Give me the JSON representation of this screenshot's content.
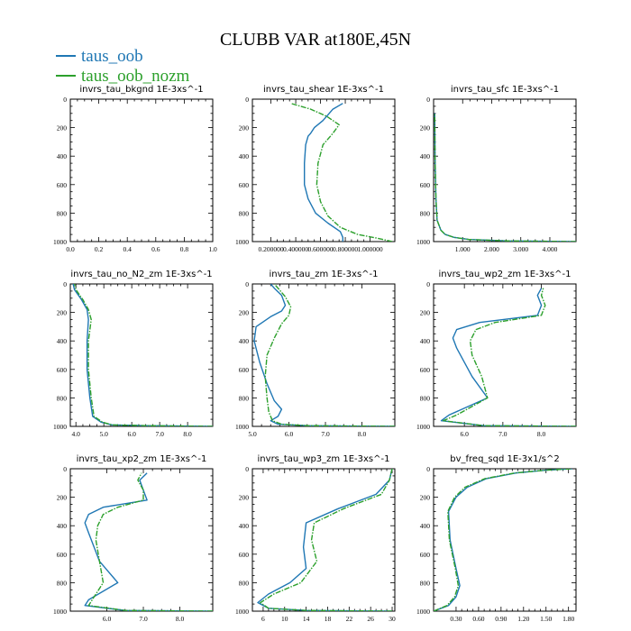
{
  "title": "CLUBB VAR at180E,45N",
  "legend": [
    {
      "label": "taus_oob",
      "color": "#1f77b4"
    },
    {
      "label": "taus_oob_nozm",
      "color": "#2ca02c"
    }
  ],
  "chart_data": [
    {
      "type": "line",
      "title": "invrs_tau_bkgnd   1E-3xs^-1",
      "xlim": [
        0,
        1.0
      ],
      "ylim": [
        1000,
        0
      ],
      "xticks": [
        0.0,
        0.2,
        0.4,
        0.6,
        0.8,
        1.0
      ],
      "xtick_labels": [
        "0.0",
        "0.2",
        "0.4",
        "0.6",
        "0.8",
        "1.0"
      ],
      "yticks": [
        0,
        200,
        400,
        600,
        800,
        1000
      ],
      "series": []
    },
    {
      "type": "line",
      "title": "invrs_tau_shear   1E-3xs^-1",
      "xlim": [
        0.05,
        1.2
      ],
      "ylim": [
        1000,
        0
      ],
      "xticks": [
        0.2,
        0.4,
        0.6,
        0.8,
        1.0
      ],
      "xtick_labels": [
        "0.200000",
        "0.400000",
        "0.600000",
        "0.800000",
        "1.000000"
      ],
      "yticks": [
        0,
        200,
        400,
        600,
        800,
        1000
      ],
      "series": [
        {
          "name": "taus_oob",
          "x": [
            0.78,
            0.78,
            0.76,
            0.66,
            0.56,
            0.5,
            0.47,
            0.47,
            0.48,
            0.5,
            0.52,
            0.55,
            0.62,
            0.7,
            0.78
          ],
          "y": [
            1000,
            970,
            930,
            870,
            800,
            700,
            600,
            450,
            320,
            260,
            240,
            200,
            150,
            70,
            30
          ]
        },
        {
          "name": "taus_oob_nozm",
          "x": [
            1.18,
            1.05,
            0.9,
            0.76,
            0.66,
            0.6,
            0.57,
            0.58,
            0.62,
            0.7,
            0.75,
            0.65,
            0.52,
            0.36
          ],
          "y": [
            1000,
            975,
            950,
            900,
            820,
            720,
            600,
            450,
            320,
            240,
            180,
            120,
            70,
            30
          ]
        }
      ]
    },
    {
      "type": "line",
      "title": "invrs_tau_sfc   1E-3xs^-1",
      "xlim": [
        0.0,
        4.9
      ],
      "ylim": [
        1000,
        0
      ],
      "xticks": [
        1.0,
        2.0,
        3.0,
        4.0
      ],
      "xtick_labels": [
        "1.000",
        "2.000",
        "3.000",
        "4.000"
      ],
      "yticks": [
        0,
        200,
        400,
        600,
        800,
        1000
      ],
      "series": [
        {
          "name": "taus_oob",
          "x": [
            4.9,
            2.5,
            1.2,
            0.7,
            0.4,
            0.25,
            0.12,
            0.08,
            0.05,
            0.04
          ],
          "y": [
            1000,
            995,
            985,
            970,
            950,
            920,
            850,
            700,
            400,
            100
          ]
        },
        {
          "name": "taus_oob_nozm",
          "x": [
            4.9,
            2.5,
            1.2,
            0.7,
            0.4,
            0.25,
            0.12,
            0.08,
            0.05,
            0.04
          ],
          "y": [
            1000,
            995,
            985,
            970,
            950,
            920,
            850,
            700,
            400,
            100
          ]
        }
      ]
    },
    {
      "type": "line",
      "title": "invrs_tau_no_N2_zm   1E-3xs^-1",
      "xlim": [
        3.8,
        8.9
      ],
      "ylim": [
        1000,
        0
      ],
      "xticks": [
        4.0,
        5.0,
        6.0,
        7.0,
        8.0
      ],
      "xtick_labels": [
        "4.0",
        "5.0",
        "6.0",
        "7.0",
        "8.0"
      ],
      "yticks": [
        0,
        200,
        400,
        600,
        800,
        1000
      ],
      "series": [
        {
          "name": "taus_oob",
          "x": [
            8.9,
            6.5,
            5.3,
            4.9,
            4.6,
            4.5,
            4.4,
            4.4,
            4.45,
            4.4,
            4.2,
            3.95,
            3.9
          ],
          "y": [
            1000,
            995,
            990,
            970,
            930,
            800,
            600,
            400,
            250,
            180,
            110,
            40,
            0
          ]
        },
        {
          "name": "taus_oob_nozm",
          "x": [
            8.9,
            6.5,
            5.3,
            4.95,
            4.65,
            4.55,
            4.45,
            4.45,
            4.55,
            4.45,
            4.25,
            4.0,
            3.95
          ],
          "y": [
            1000,
            995,
            990,
            970,
            930,
            800,
            600,
            400,
            250,
            180,
            110,
            40,
            0
          ]
        }
      ]
    },
    {
      "type": "line",
      "title": "invrs_tau_zm   1E-3xs^-1",
      "xlim": [
        5.0,
        8.9
      ],
      "ylim": [
        1000,
        0
      ],
      "xticks": [
        5.0,
        6.0,
        7.0,
        8.0
      ],
      "xtick_labels": [
        "5.0",
        "6.0",
        "7.0",
        "8.0"
      ],
      "yticks": [
        0,
        200,
        400,
        600,
        800,
        1000
      ],
      "series": [
        {
          "name": "taus_oob",
          "x": [
            8.9,
            6.5,
            5.7,
            5.5,
            5.7,
            5.8,
            5.6,
            5.4,
            5.2,
            5.05,
            5.1,
            5.5,
            5.8,
            5.9,
            5.8,
            5.6,
            5.5
          ],
          "y": [
            1000,
            995,
            985,
            960,
            930,
            880,
            820,
            700,
            550,
            400,
            300,
            230,
            190,
            150,
            80,
            30,
            0
          ]
        },
        {
          "name": "taus_oob_nozm",
          "x": [
            8.9,
            6.5,
            5.8,
            5.55,
            5.45,
            5.4,
            5.35,
            5.4,
            5.6,
            5.8,
            6.0,
            6.05,
            5.9,
            5.7,
            5.6
          ],
          "y": [
            1000,
            995,
            985,
            960,
            900,
            800,
            650,
            500,
            380,
            280,
            220,
            160,
            90,
            30,
            0
          ]
        }
      ]
    },
    {
      "type": "line",
      "title": "invrs_tau_wp2_zm   1E-3xs^-1",
      "xlim": [
        5.2,
        8.9
      ],
      "ylim": [
        1000,
        0
      ],
      "xticks": [
        6.0,
        7.0,
        8.0
      ],
      "xtick_labels": [
        "6.0",
        "7.0",
        "8.0"
      ],
      "yticks": [
        0,
        200,
        400,
        600,
        800,
        1000
      ],
      "series": [
        {
          "name": "taus_oob",
          "x": [
            8.9,
            6.5,
            5.4,
            5.6,
            6.6,
            6.2,
            5.8,
            5.7,
            5.8,
            6.4,
            7.9,
            8.0,
            7.9,
            8.0
          ],
          "y": [
            1000,
            995,
            960,
            920,
            800,
            650,
            450,
            380,
            320,
            270,
            220,
            150,
            80,
            30
          ]
        },
        {
          "name": "taus_oob_nozm",
          "x": [
            8.9,
            6.5,
            5.45,
            5.8,
            6.6,
            6.45,
            6.2,
            6.15,
            6.3,
            6.8,
            8.0,
            8.1,
            8.0,
            8.05
          ],
          "y": [
            1000,
            995,
            960,
            920,
            800,
            650,
            500,
            400,
            320,
            270,
            220,
            150,
            80,
            30
          ]
        }
      ]
    },
    {
      "type": "line",
      "title": "invrs_tau_xp2_zm   1E-3xs^-1",
      "xlim": [
        5.0,
        8.9
      ],
      "ylim": [
        1000,
        0
      ],
      "xticks": [
        6.0,
        7.0,
        8.0
      ],
      "xtick_labels": [
        "6.0",
        "7.0",
        "8.0"
      ],
      "yticks": [
        0,
        200,
        400,
        600,
        800,
        1000
      ],
      "series": [
        {
          "name": "taus_oob",
          "x": [
            8.9,
            6.5,
            5.4,
            5.5,
            6.3,
            5.8,
            5.5,
            5.4,
            5.5,
            5.9,
            7.1,
            7.0,
            6.9,
            7.1
          ],
          "y": [
            1000,
            995,
            960,
            920,
            800,
            650,
            450,
            380,
            320,
            270,
            220,
            150,
            80,
            30
          ]
        },
        {
          "name": "taus_oob_nozm",
          "x": [
            8.9,
            6.5,
            5.5,
            5.6,
            5.9,
            5.8,
            5.7,
            5.75,
            5.9,
            6.3,
            7.0,
            7.0,
            6.85,
            6.95
          ],
          "y": [
            1000,
            995,
            960,
            920,
            800,
            650,
            500,
            400,
            320,
            270,
            220,
            150,
            80,
            30
          ]
        }
      ]
    },
    {
      "type": "line",
      "title": "invrs_tau_wp3_zm   1E-3xs^-1",
      "xlim": [
        4.0,
        30.5
      ],
      "ylim": [
        1000,
        0
      ],
      "xticks": [
        6,
        10,
        14,
        18,
        22,
        26,
        30
      ],
      "xtick_labels": [
        "6",
        "10",
        "14",
        "18",
        "22",
        "26",
        "30"
      ],
      "yticks": [
        0,
        200,
        400,
        600,
        800,
        1000
      ],
      "series": [
        {
          "name": "taus_oob",
          "x": [
            30,
            14,
            7,
            5,
            7,
            11,
            14,
            13.5,
            14,
            20,
            27,
            29.5,
            30
          ],
          "y": [
            1000,
            995,
            980,
            940,
            880,
            800,
            700,
            550,
            380,
            280,
            180,
            80,
            0
          ]
        },
        {
          "name": "taus_oob_nozm",
          "x": [
            30,
            14,
            7,
            5.5,
            8,
            13,
            16,
            15,
            15.5,
            21,
            28,
            29.5,
            30
          ],
          "y": [
            1000,
            995,
            980,
            940,
            880,
            800,
            650,
            500,
            380,
            280,
            180,
            80,
            0
          ]
        }
      ]
    },
    {
      "type": "line",
      "title": "bv_freq_sqd   1E-3x1/s^2",
      "xlim": [
        0.0,
        1.9
      ],
      "ylim": [
        1000,
        0
      ],
      "xticks": [
        0.3,
        0.6,
        0.9,
        1.2,
        1.5,
        1.8
      ],
      "xtick_labels": [
        "0.30",
        "0.60",
        "0.90",
        "1.20",
        "1.50",
        "1.80"
      ],
      "yticks": [
        0,
        200,
        400,
        600,
        800,
        1000
      ],
      "series": [
        {
          "name": "taus_oob",
          "x": [
            0.0,
            0.2,
            0.3,
            0.35,
            0.3,
            0.22,
            0.2,
            0.3,
            0.45,
            0.7,
            1.1,
            1.5,
            1.85
          ],
          "y": [
            1000,
            960,
            900,
            820,
            700,
            500,
            300,
            200,
            130,
            70,
            30,
            10,
            0
          ]
        },
        {
          "name": "taus_oob_nozm",
          "x": [
            0.0,
            0.18,
            0.28,
            0.33,
            0.29,
            0.21,
            0.19,
            0.28,
            0.42,
            0.68,
            1.08,
            1.5,
            1.85
          ],
          "y": [
            1000,
            960,
            900,
            820,
            700,
            500,
            300,
            200,
            130,
            70,
            30,
            10,
            0
          ]
        }
      ]
    }
  ]
}
